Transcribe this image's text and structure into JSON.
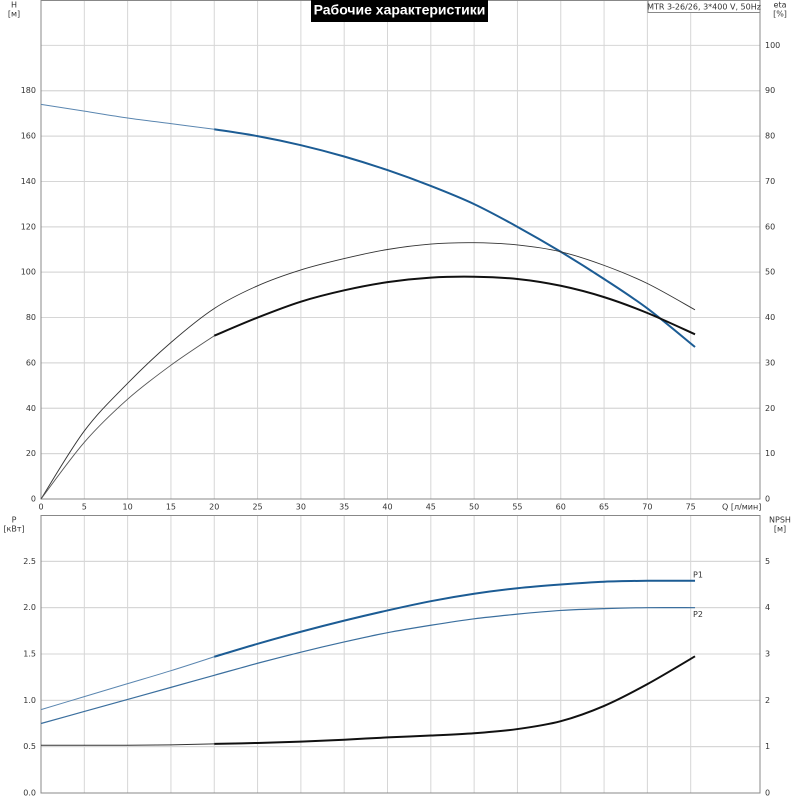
{
  "chart_data": [
    {
      "type": "line",
      "title": "Рабочие характеристики",
      "annotation": "MTR 3-26/26, 3*400 V, 50Hz",
      "ylabel": "H",
      "yunit": "[м]",
      "y2label": "eta",
      "y2unit": "[%]",
      "xlabel": "Q [л/мин]",
      "x": [
        0,
        5,
        10,
        15,
        20,
        25,
        30,
        35,
        40,
        45,
        50,
        55,
        60,
        65,
        70,
        75.5
      ],
      "xlim": [
        0,
        83
      ],
      "xticks": [
        0,
        5,
        10,
        15,
        20,
        25,
        30,
        35,
        40,
        45,
        50,
        55,
        60,
        65,
        70,
        75
      ],
      "ylim": [
        0,
        220
      ],
      "yticks": [
        0,
        20,
        40,
        60,
        80,
        100,
        120,
        140,
        160,
        180
      ],
      "y2lim": [
        0,
        110
      ],
      "y2ticks": [
        0,
        10,
        20,
        30,
        40,
        50,
        60,
        70,
        80,
        90,
        100
      ],
      "grid": true,
      "series": [
        {
          "color": "#5a86b0",
          "width": 1,
          "axis": "y",
          "values": [
            174,
            171,
            168,
            165.5,
            163,
            null,
            null,
            null,
            null,
            null,
            null,
            null,
            null,
            null,
            null,
            null
          ]
        },
        {
          "color": "#1c5c94",
          "width": 2,
          "axis": "y",
          "values": [
            null,
            null,
            null,
            null,
            163,
            160,
            156,
            151,
            145,
            138,
            130,
            120,
            109,
            97,
            84,
            67
          ]
        },
        {
          "color": "#333333",
          "width": 0.9,
          "axis": "y2",
          "values": [
            0,
            15,
            25.5,
            34.5,
            42,
            47,
            50.5,
            53,
            55,
            56.2,
            56.5,
            56,
            54.5,
            51.5,
            47.5,
            41.7
          ]
        },
        {
          "color": "#555555",
          "width": 0.9,
          "axis": "y2",
          "values": [
            0,
            12.5,
            22,
            29.5,
            36,
            null,
            null,
            null,
            null,
            null,
            null,
            null,
            null,
            null,
            null,
            null
          ]
        },
        {
          "color": "#111111",
          "width": 2,
          "axis": "y2",
          "values": [
            null,
            null,
            null,
            null,
            36,
            40,
            43.5,
            46,
            47.8,
            48.8,
            49,
            48.5,
            47,
            44.5,
            41,
            36.3
          ]
        }
      ]
    },
    {
      "type": "line",
      "ylabel": "P",
      "yunit": "[кВт]",
      "y2label": "NPSH",
      "y2unit": "[м]",
      "x": [
        0,
        5,
        10,
        15,
        20,
        25,
        30,
        35,
        40,
        45,
        50,
        55,
        60,
        65,
        70,
        75.5
      ],
      "xlim": [
        0,
        83
      ],
      "ylim": [
        0,
        3
      ],
      "yticks": [
        {
          "value": 0,
          "label": "0.0"
        },
        0.5,
        {
          "value": 1,
          "label": "1.0"
        },
        1.5,
        {
          "value": 2,
          "label": "2.0"
        },
        2.5
      ],
      "y2lim": [
        0,
        6
      ],
      "y2ticks": [
        0,
        1,
        2,
        3,
        4,
        5
      ],
      "grid": true,
      "series": [
        {
          "color": "#5a86b0",
          "width": 1,
          "axis": "y",
          "values": [
            0.9,
            1.04,
            1.18,
            1.32,
            1.47,
            null,
            null,
            null,
            null,
            null,
            null,
            null,
            null,
            null,
            null,
            null
          ]
        },
        {
          "name": "P1",
          "color": "#1c5c94",
          "width": 2,
          "axis": "y",
          "values": [
            null,
            null,
            null,
            null,
            1.47,
            1.61,
            1.74,
            1.86,
            1.97,
            2.07,
            2.15,
            2.21,
            2.25,
            2.28,
            2.29,
            2.29
          ]
        },
        {
          "name": "P2",
          "color": "#3b6f9e",
          "width": 1.2,
          "axis": "y",
          "values": [
            0.75,
            0.88,
            1.01,
            1.14,
            1.27,
            1.4,
            1.52,
            1.63,
            1.73,
            1.81,
            1.88,
            1.93,
            1.97,
            1.99,
            2.0,
            2.0
          ]
        },
        {
          "color": "#333333",
          "width": 1,
          "axis": "y2",
          "values": [
            1.03,
            1.03,
            1.03,
            1.04,
            1.06,
            null,
            null,
            null,
            null,
            null,
            null,
            null,
            null,
            null,
            null,
            null
          ]
        },
        {
          "color": "#111111",
          "width": 2,
          "axis": "y2",
          "values": [
            null,
            null,
            null,
            null,
            1.06,
            1.08,
            1.11,
            1.15,
            1.2,
            1.24,
            1.29,
            1.38,
            1.55,
            1.88,
            2.35,
            2.95
          ]
        }
      ]
    }
  ]
}
